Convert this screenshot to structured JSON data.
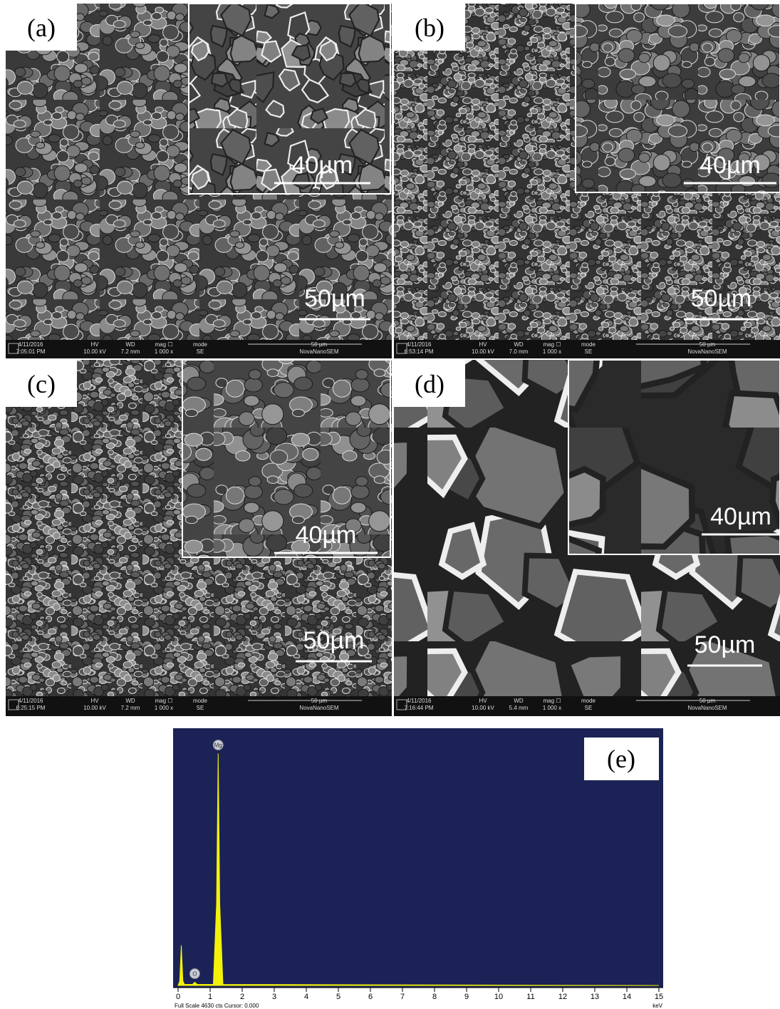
{
  "panels": [
    {
      "label": "(a)",
      "inset_scale": "40µm",
      "scale": "50µm",
      "info": {
        "date": "4/11/2016",
        "time": "7:05:01 PM",
        "hv_label": "HV",
        "hv": "10.00 kV",
        "wd_label": "WD",
        "wd": "7.2 mm",
        "mag_label": "mag ☐",
        "mag": "1 000 x",
        "mode_label": "mode",
        "mode": "SE",
        "bar_label": "50 µm",
        "instrument": "NovaNanoSEM"
      }
    },
    {
      "label": "(b)",
      "inset_scale": "40µm",
      "scale": "50µm",
      "info": {
        "date": "4/11/2016",
        "time": "6:53:14 PM",
        "hv_label": "HV",
        "hv": "10.00 kV",
        "wd_label": "WD",
        "wd": "7.0 mm",
        "mag_label": "mag ☐",
        "mag": "1 000 x",
        "mode_label": "mode",
        "mode": "SE",
        "bar_label": "50 µm",
        "instrument": "NovaNanoSEM"
      }
    },
    {
      "label": "(c)",
      "inset_scale": "40µm",
      "scale": "50µm",
      "info": {
        "date": "4/11/2016",
        "time": "6:25:15 PM",
        "hv_label": "HV",
        "hv": "10.00 kV",
        "wd_label": "WD",
        "wd": "7.2 mm",
        "mag_label": "mag ☐",
        "mag": "1 000 x",
        "mode_label": "mode",
        "mode": "SE",
        "bar_label": "50 µm",
        "instrument": "NovaNanoSEM"
      }
    },
    {
      "label": "(d)",
      "inset_scale": "40µm",
      "scale": "50µm",
      "info": {
        "date": "4/11/2016",
        "time": "7:16:44 PM",
        "hv_label": "HV",
        "hv": "10.00 kV",
        "wd_label": "WD",
        "wd": "5.4 mm",
        "mag_label": "mag ☐",
        "mag": "1 000 x",
        "mode_label": "mode",
        "mode": "SE",
        "bar_label": "50 µm",
        "instrument": "NovaNanoSEM"
      }
    }
  ],
  "spectrum": {
    "label": "(e)",
    "x": [
      0,
      0.05,
      0.1,
      0.15,
      0.2,
      0.45,
      0.52,
      0.6,
      1.1,
      1.2,
      1.25,
      1.3,
      1.4,
      15
    ],
    "values": [
      0,
      80,
      740,
      80,
      20,
      20,
      60,
      20,
      20,
      1500,
      4270,
      1500,
      20,
      0
    ],
    "xlim": [
      0,
      15
    ],
    "xticks": [
      0,
      1,
      2,
      3,
      4,
      5,
      6,
      7,
      8,
      9,
      10,
      11,
      12,
      13,
      14,
      15
    ],
    "ylim": [
      0,
      4630
    ],
    "peak_labels": [
      {
        "label": "Mg",
        "x": 1.25,
        "y": 4270
      },
      {
        "label": "O",
        "x": 0.52,
        "y": 60
      }
    ],
    "footer": "Full Scale 4630 cts Cursor: 0.000",
    "unit": "keV"
  }
}
